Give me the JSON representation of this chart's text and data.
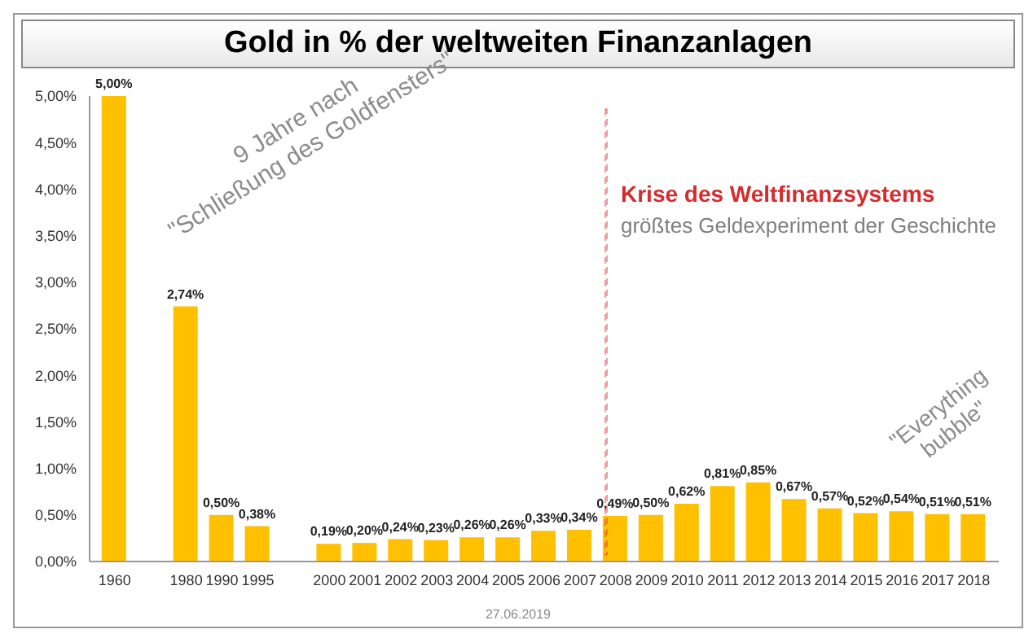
{
  "chart_data": {
    "type": "bar",
    "title": "Gold in % der weltweiten Finanzanlagen",
    "categories": [
      "1960",
      null,
      "1980",
      "1990",
      "1995",
      null,
      "2000",
      "2001",
      "2002",
      "2003",
      "2004",
      "2005",
      "2006",
      "2007",
      "2008",
      "2009",
      "2010",
      "2011",
      "2012",
      "2013",
      "2014",
      "2015",
      "2016",
      "2017",
      "2018"
    ],
    "values": [
      5.0,
      null,
      2.74,
      0.5,
      0.38,
      null,
      0.19,
      0.2,
      0.24,
      0.23,
      0.26,
      0.26,
      0.33,
      0.34,
      0.49,
      0.5,
      0.62,
      0.81,
      0.85,
      0.67,
      0.57,
      0.52,
      0.54,
      0.51,
      0.51
    ],
    "value_labels": [
      "5,00%",
      null,
      "2,74%",
      "0,50%",
      "0,38%",
      null,
      "0,19%",
      "0,20%",
      "0,24%",
      "0,23%",
      "0,26%",
      "0,26%",
      "0,33%",
      "0,34%",
      "0,49%",
      "0,50%",
      "0,62%",
      "0,81%",
      "0,85%",
      "0,67%",
      "0,57%",
      "0,52%",
      "0,54%",
      "0,51%",
      "0,51%"
    ],
    "color": "#ffc000",
    "ylim": [
      0,
      5
    ],
    "yticks": [
      {
        "value": 0,
        "label": "0,00%"
      },
      {
        "value": 0.5,
        "label": "0,50%"
      },
      {
        "value": 1,
        "label": "1,00%"
      },
      {
        "value": 1.5,
        "label": "1,50%"
      },
      {
        "value": 2,
        "label": "2,00%"
      },
      {
        "value": 2.5,
        "label": "2,50%"
      },
      {
        "value": 3,
        "label": "3,00%"
      },
      {
        "value": 3.5,
        "label": "3,50%"
      },
      {
        "value": 4,
        "label": "4,00%"
      },
      {
        "value": 4.5,
        "label": "4,50%"
      },
      {
        "value": 5,
        "label": "5,00%"
      }
    ],
    "grid": false,
    "legend": false,
    "annotations": [
      "9 Jahre nach\n\"Schließung des Goldfensters\"",
      "Krise des Weltfinanzsystems",
      "größtes Geldexperiment der Geschichte",
      "\"Everything\nbubble\"",
      "27.06.2019"
    ]
  }
}
